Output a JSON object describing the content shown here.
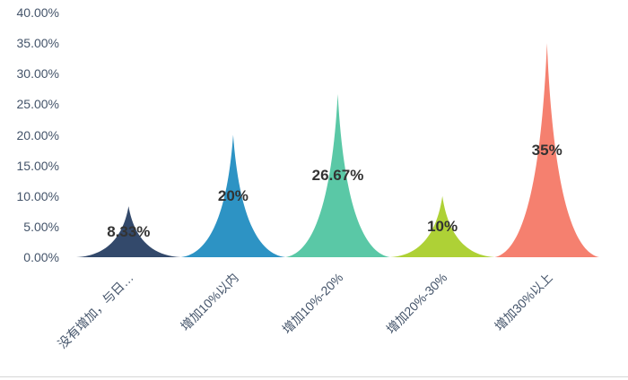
{
  "page": {
    "background_color": "#ffffff",
    "bottom_border_color": "#d6d6d6"
  },
  "chart_data": {
    "type": "bar",
    "shape_variant": "concave-triangle-spike",
    "title": "",
    "xlabel": "",
    "ylabel": "",
    "categories": [
      "没有增加，与日…",
      "增加10%以内",
      "增加10%-20%",
      "增加20%-30%",
      "增加30%以上"
    ],
    "values": [
      8.33,
      20,
      26.67,
      10,
      35
    ],
    "value_labels": [
      "8.33%",
      "20%",
      "26.67%",
      "10%",
      "35%"
    ],
    "series_colors": [
      "#33496b",
      "#2d93c4",
      "#5ac8a6",
      "#aed136",
      "#f5806f"
    ],
    "y_ticks": [
      "40.00%",
      "35.00%",
      "30.00%",
      "25.00%",
      "20.00%",
      "15.00%",
      "10.00%",
      "5.00%",
      "0.00%"
    ],
    "y_tick_values": [
      40,
      35,
      30,
      25,
      20,
      15,
      10,
      5,
      0
    ],
    "ylim": [
      0,
      40
    ],
    "grid": false,
    "legend": false,
    "axis_label_color": "#44546a",
    "data_label_color": "#333333"
  }
}
